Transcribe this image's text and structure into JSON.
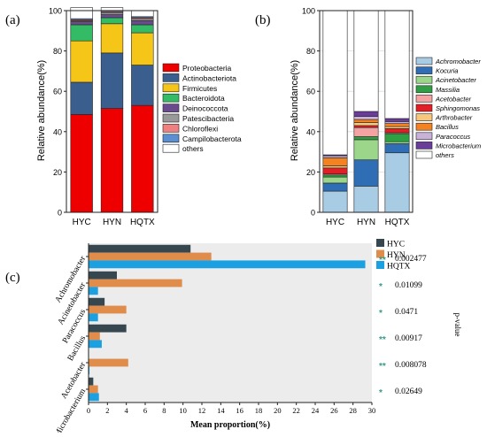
{
  "panel_a": {
    "label": "(a)",
    "ylabel": "Relative abundance(%)",
    "ylim": [
      0,
      100
    ],
    "yticks": [
      "0",
      "20",
      "40",
      "60",
      "80",
      "100"
    ],
    "categories": [
      "HYC",
      "HYN",
      "HQTX"
    ],
    "legend": [
      "Proteobacteria",
      "Actinobacteriota",
      "Firmicutes",
      "Bacteroidota",
      "Deinococcota",
      "Patescibacteria",
      "Chloroflexi",
      "Campilobacterota",
      "others"
    ]
  },
  "panel_b": {
    "label": "(b)",
    "ylabel": "Relative abundance(%)",
    "ylim": [
      0,
      100
    ],
    "yticks": [
      "0",
      "20",
      "40",
      "60",
      "80",
      "100"
    ],
    "categories": [
      "HYC",
      "HYN",
      "HQTX"
    ],
    "legend": [
      "Achromobacter",
      "Kocuria",
      "Acinetobacter",
      "Massilia",
      "Acetobacter",
      "Sphingomonas",
      "Arthrobacter",
      "Bacillus",
      "Paracoccus",
      "Microbacterium",
      "others"
    ]
  },
  "panel_c": {
    "label": "(c)",
    "xlabel": "Mean proportion(%)",
    "side_label": "p-value",
    "xlim": [
      0,
      30
    ],
    "xticks": [
      "0",
      "2",
      "4",
      "6",
      "8",
      "10",
      "12",
      "14",
      "16",
      "18",
      "20",
      "22",
      "24",
      "26",
      "28",
      "30"
    ],
    "legend": [
      "HYC",
      "HYN",
      "HQTX"
    ],
    "rows": [
      {
        "name": "Achromobacter",
        "sig": "**",
        "p": "0.002477"
      },
      {
        "name": "Acinetobacter",
        "sig": "*",
        "p": "0.01099"
      },
      {
        "name": "Paracoccus",
        "sig": "*",
        "p": "0.0471"
      },
      {
        "name": "Bacillus",
        "sig": "**",
        "p": "0.00917"
      },
      {
        "name": "Acetobacter",
        "sig": "**",
        "p": "0.008078"
      },
      {
        "name": "Microbacterium",
        "sig": "*",
        "p": "0.02649"
      }
    ]
  },
  "colors": {
    "a": [
      "#ee0000",
      "#3a5f8f",
      "#f5c518",
      "#33bb66",
      "#6a4c8c",
      "#999999",
      "#f08080",
      "#5b8fd0",
      "#ffffff"
    ],
    "b": [
      "#a8cce4",
      "#2f6eb5",
      "#9bd68a",
      "#2ea043",
      "#f4a3a3",
      "#e21f26",
      "#f8c77e",
      "#f58220",
      "#c8b2d8",
      "#6a3d9a",
      "#ffffff"
    ],
    "c": [
      "#37474f",
      "#e08c4a",
      "#1ba1e2"
    ],
    "sig": "#3a9a8a"
  },
  "chart_data": [
    {
      "type": "bar",
      "stacked": true,
      "title": "",
      "xlabel": "",
      "ylabel": "Relative abundance(%)",
      "ylim": [
        0,
        100
      ],
      "categories": [
        "HYC",
        "HYN",
        "HQTX"
      ],
      "series": [
        {
          "name": "Proteobacteria",
          "values": [
            48.5,
            51.5,
            53
          ]
        },
        {
          "name": "Actinobacteriota",
          "values": [
            16,
            27.5,
            20
          ]
        },
        {
          "name": "Firmicutes",
          "values": [
            20.5,
            14.5,
            16
          ]
        },
        {
          "name": "Bacteroidota",
          "values": [
            8,
            3,
            4
          ]
        },
        {
          "name": "Deinococcota",
          "values": [
            1.5,
            1.5,
            2
          ]
        },
        {
          "name": "Patescibacteria",
          "values": [
            0.5,
            1,
            1
          ]
        },
        {
          "name": "Chloroflexi",
          "values": [
            0.5,
            0.5,
            0.5
          ]
        },
        {
          "name": "Campilobacterota",
          "values": [
            0.5,
            0.5,
            0.5
          ]
        },
        {
          "name": "others",
          "values": [
            5.5,
            1.5,
            3
          ]
        }
      ]
    },
    {
      "type": "bar",
      "stacked": true,
      "title": "",
      "xlabel": "",
      "ylabel": "Relative abundance(%)",
      "ylim": [
        0,
        100
      ],
      "categories": [
        "HYC",
        "HYN",
        "HQTX"
      ],
      "series": [
        {
          "name": "Achromobacter",
          "values": [
            10.5,
            13,
            29.5
          ]
        },
        {
          "name": "Kocuria",
          "values": [
            4,
            13,
            4.5
          ]
        },
        {
          "name": "Acinetobacter",
          "values": [
            3,
            10,
            1
          ]
        },
        {
          "name": "Massilia",
          "values": [
            1,
            1.5,
            4
          ]
        },
        {
          "name": "Acetobacter",
          "values": [
            0.5,
            4.5,
            0.5
          ]
        },
        {
          "name": "Sphingomonas",
          "values": [
            3,
            1,
            2
          ]
        },
        {
          "name": "Arthrobacter",
          "values": [
            1,
            1.5,
            1
          ]
        },
        {
          "name": "Bacillus",
          "values": [
            4,
            1.5,
            1.5
          ]
        },
        {
          "name": "Paracoccus",
          "values": [
            1,
            1.5,
            1
          ]
        },
        {
          "name": "Microbacterium",
          "values": [
            0.5,
            2.5,
            1.5
          ]
        },
        {
          "name": "others",
          "values": [
            71.5,
            50,
            53.5
          ]
        }
      ]
    },
    {
      "type": "bar",
      "orientation": "horizontal",
      "title": "",
      "xlabel": "Mean proportion(%)",
      "ylabel": "",
      "xlim": [
        0,
        30
      ],
      "categories": [
        "Achromobacter",
        "Acinetobacter",
        "Paracoccus",
        "Bacillus",
        "Acetobacter",
        "Microbacterium"
      ],
      "series": [
        {
          "name": "HYC",
          "values": [
            10.8,
            3.0,
            1.7,
            4.0,
            0,
            0.5
          ]
        },
        {
          "name": "HYN",
          "values": [
            13.0,
            9.9,
            4.0,
            1.2,
            4.2,
            1.0
          ]
        },
        {
          "name": "HQTX",
          "values": [
            29.3,
            1.0,
            1.0,
            1.4,
            0.1,
            1.1
          ]
        }
      ],
      "annotations": [
        {
          "category": "Achromobacter",
          "sig": "**",
          "p": "0.002477"
        },
        {
          "category": "Acinetobacter",
          "sig": "*",
          "p": "0.01099"
        },
        {
          "category": "Paracoccus",
          "sig": "*",
          "p": "0.0471"
        },
        {
          "category": "Bacillus",
          "sig": "**",
          "p": "0.00917"
        },
        {
          "category": "Acetobacter",
          "sig": "**",
          "p": "0.008078"
        },
        {
          "category": "Microbacterium",
          "sig": "*",
          "p": "0.02649"
        }
      ]
    }
  ]
}
